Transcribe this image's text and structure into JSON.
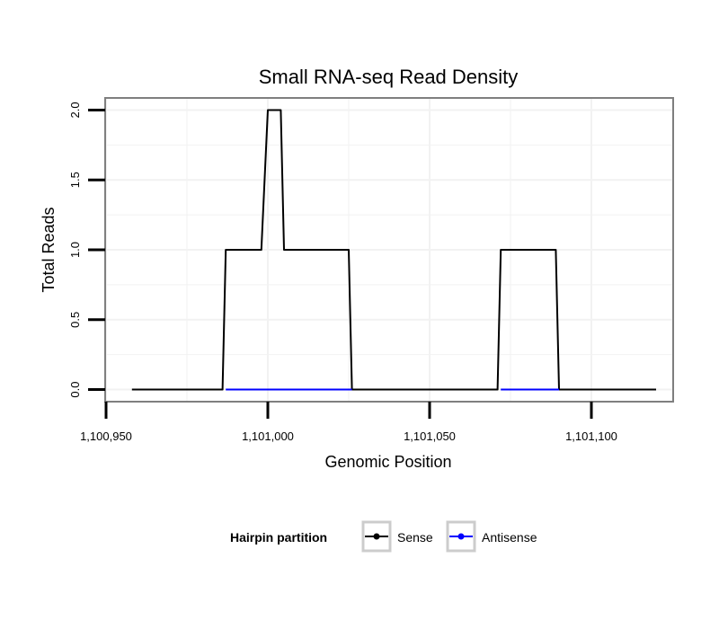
{
  "chart_data": {
    "type": "line",
    "title": "Small RNA-seq Read Density",
    "xlabel": "Genomic Position",
    "ylabel": "Total Reads",
    "xlim": [
      1100950,
      1101125
    ],
    "ylim": [
      -0.08,
      2.08
    ],
    "x_ticks": [
      1100950,
      1101000,
      1101050,
      1101100
    ],
    "x_tick_labels": [
      "1,100,950",
      "1,101,000",
      "1,101,050",
      "1,101,100"
    ],
    "y_ticks": [
      0,
      0.5,
      1,
      1.5,
      2
    ],
    "y_tick_labels": [
      "0.0",
      "0.5",
      "1.0",
      "1.5",
      "2.0"
    ],
    "grid": true,
    "legend": {
      "title": "Hairpin partition",
      "position": "bottom"
    },
    "series": [
      {
        "name": "Sense",
        "color": "#000000",
        "x": [
          1100958,
          1100986,
          1100987,
          1100998,
          1101000,
          1101004,
          1101005,
          1101025,
          1101026,
          1101071,
          1101072,
          1101089,
          1101090,
          1101120
        ],
        "y": [
          0,
          0,
          1,
          1,
          2,
          2,
          1,
          1,
          0,
          0,
          1,
          1,
          0,
          0
        ]
      },
      {
        "name": "Antisense",
        "color": "#0000ff",
        "x": [
          1100987,
          1101026,
          1101072,
          1101090
        ],
        "y": [
          0,
          0,
          0,
          0
        ],
        "segments": [
          [
            1100987,
            1101026
          ],
          [
            1101072,
            1101090
          ]
        ]
      }
    ]
  }
}
